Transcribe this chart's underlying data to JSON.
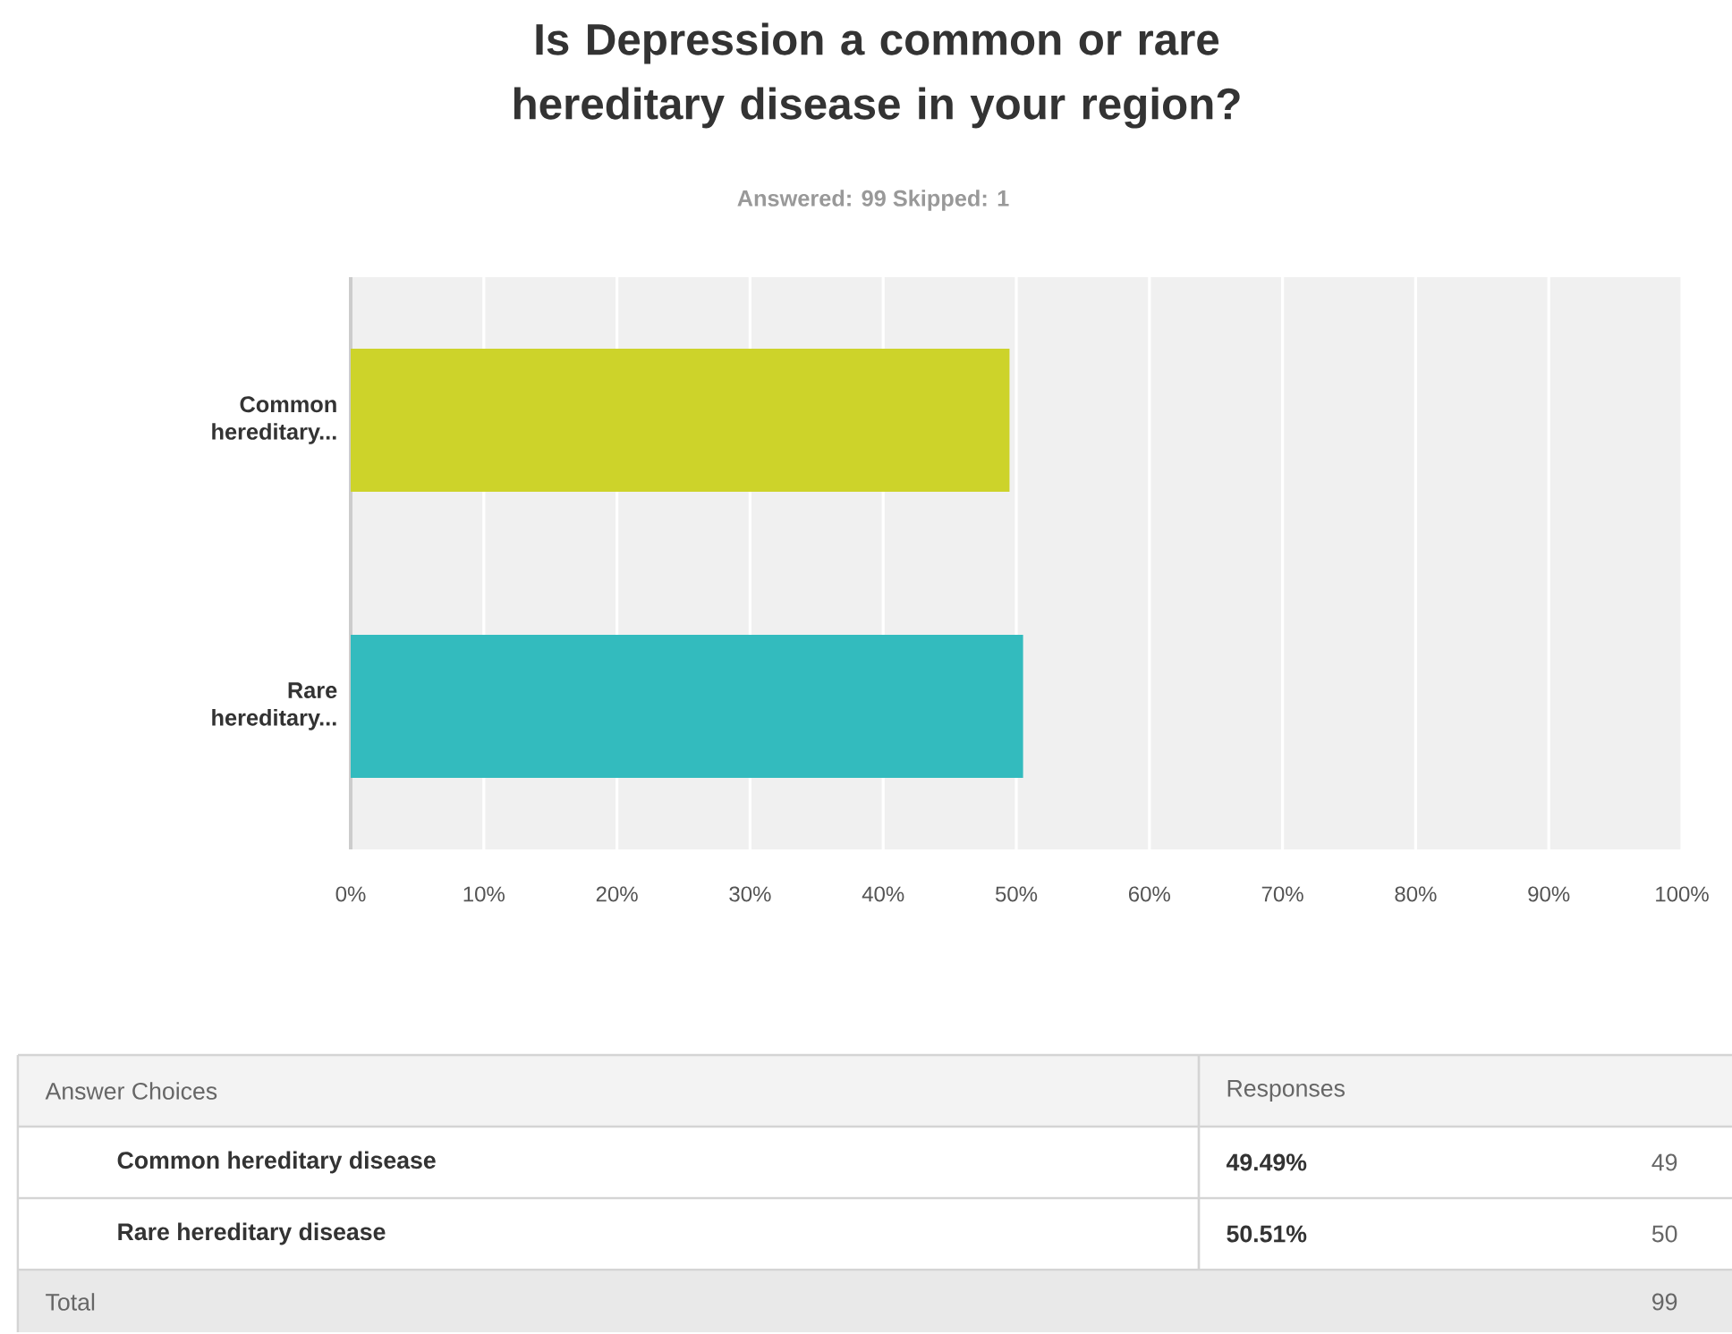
{
  "chart_data": {
    "type": "bar",
    "orientation": "horizontal",
    "title": "Is Depression a common or rare hereditary disease in your region?",
    "subtitle": "Answered: 99 Skipped: 1",
    "categories": [
      "Common hereditary...",
      "Rare hereditary..."
    ],
    "values": [
      49.49,
      50.51
    ],
    "colors": [
      "#cdd32a",
      "#33bbbe"
    ],
    "xlim": [
      0,
      100
    ],
    "xticks": [
      {
        "value": 0,
        "label": "0%"
      },
      {
        "value": 10,
        "label": "10%"
      },
      {
        "value": 20,
        "label": "20%"
      },
      {
        "value": 30,
        "label": "30%"
      },
      {
        "value": 40,
        "label": "40%"
      },
      {
        "value": 50,
        "label": "50%"
      },
      {
        "value": 60,
        "label": "60%"
      },
      {
        "value": 70,
        "label": "70%"
      },
      {
        "value": 80,
        "label": "80%"
      },
      {
        "value": 90,
        "label": "90%"
      },
      {
        "value": 100,
        "label": "100%"
      }
    ],
    "grid": "x",
    "annotations": [
      "Answer Choices",
      "Responses",
      "Common hereditary disease",
      "Rare hereditary disease",
      "49",
      "50",
      "Total",
      "99",
      "49.49%",
      "50.51%"
    ]
  }
}
